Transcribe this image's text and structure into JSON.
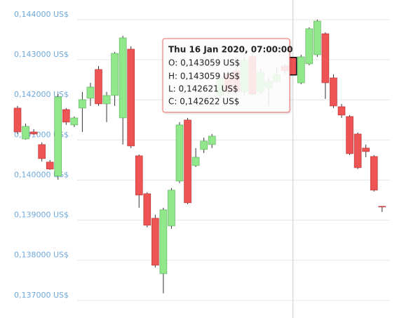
{
  "chart_data": {
    "type": "candlestick",
    "up_color": "#90e88a",
    "down_color": "#ef5454",
    "grid": true,
    "ylim": [
      0.13656,
      0.14449
    ],
    "yticks": [
      {
        "value": 0.144,
        "label": "0,144000 US$"
      },
      {
        "value": 0.143,
        "label": "0,143000 US$"
      },
      {
        "value": 0.142,
        "label": "0,142000 US$"
      },
      {
        "value": 0.141,
        "label": "0,141000 US$"
      },
      {
        "value": 0.14,
        "label": "0,140000 US$"
      },
      {
        "value": 0.139,
        "label": "0,139000 US$"
      },
      {
        "value": 0.138,
        "label": "0,138000 US$"
      },
      {
        "value": 0.137,
        "label": "0,137000 US$"
      }
    ],
    "open": [
      0.141795,
      0.141025,
      0.1412,
      0.140885,
      0.140448,
      0.140098,
      0.14176,
      0.141375,
      0.141795,
      0.14204,
      0.142758,
      0.1419,
      0.14211,
      0.14155,
      0.143265,
      0.140605,
      0.13966,
      0.139048,
      0.137665,
      0.138855,
      0.139975,
      0.141498,
      0.14036,
      0.140763,
      0.140885,
      0.14211,
      0.142635,
      0.142723,
      0.142198,
      0.143073,
      0.142198,
      0.142285,
      0.14246,
      0.142845,
      0.143059,
      0.142425,
      0.142898,
      0.143125,
      0.14365,
      0.142548,
      0.14183,
      0.141585,
      0.141148,
      0.140798,
      0.140588,
      0.139345
    ],
    "high": [
      0.141848,
      0.14141,
      0.14127,
      0.140938,
      0.1405,
      0.142145,
      0.141795,
      0.141585,
      0.142198,
      0.142425,
      0.142845,
      0.142198,
      0.143195,
      0.143598,
      0.143335,
      0.14064,
      0.139695,
      0.139135,
      0.13931,
      0.1398,
      0.141445,
      0.14155,
      0.140798,
      0.14106,
      0.141148,
      0.142635,
      0.142723,
      0.14281,
      0.143073,
      0.14316,
      0.142775,
      0.142548,
      0.14281,
      0.142898,
      0.143059,
      0.143125,
      0.143808,
      0.144,
      0.143685,
      0.142635,
      0.1419,
      0.14162,
      0.141183,
      0.140885,
      0.140623,
      0.139345
    ],
    "low": [
      0.141148,
      0.141008,
      0.14113,
      0.140465,
      0.140255,
      0.14001,
      0.141375,
      0.141323,
      0.1412,
      0.141848,
      0.141848,
      0.141445,
      0.141848,
      0.140885,
      0.140798,
      0.13931,
      0.13882,
      0.137823,
      0.137175,
      0.138785,
      0.139923,
      0.139398,
      0.140325,
      0.140675,
      0.140798,
      0.142023,
      0.142145,
      0.14211,
      0.14211,
      0.14211,
      0.142145,
      0.141848,
      0.142425,
      0.142635,
      0.142621,
      0.14239,
      0.142863,
      0.143073,
      0.142023,
      0.141795,
      0.14155,
      0.140623,
      0.140273,
      0.14057,
      0.139713,
      0.139205
    ],
    "close": [
      0.1412,
      0.14134,
      0.141148,
      0.140535,
      0.140273,
      0.142075,
      0.141445,
      0.14155,
      0.142005,
      0.14232,
      0.1419,
      0.14211,
      0.14316,
      0.143545,
      0.14085,
      0.139625,
      0.138873,
      0.137875,
      0.139258,
      0.139748,
      0.141375,
      0.139433,
      0.14057,
      0.140973,
      0.141095,
      0.142548,
      0.142198,
      0.142198,
      0.142985,
      0.142145,
      0.142688,
      0.14246,
      0.142635,
      0.142723,
      0.142622,
      0.143073,
      0.143773,
      0.143965,
      0.142425,
      0.141848,
      0.14162,
      0.140658,
      0.140308,
      0.14071,
      0.139748,
      0.139328
    ],
    "highlight_index": 34,
    "tooltip": {
      "title": "Thu 16 Jan 2020, 07:00:00",
      "lines": [
        "O: 0,143059 US$",
        "H: 0,143059 US$",
        "L: 0,142621 US$",
        "C: 0,142622 US$"
      ]
    }
  }
}
